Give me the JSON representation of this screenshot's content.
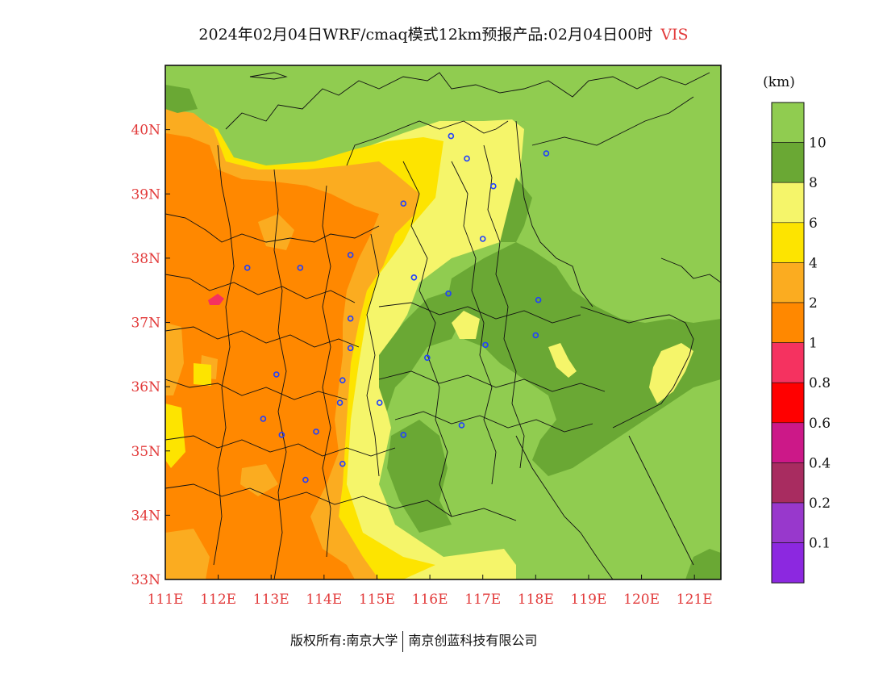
{
  "title": {
    "text": "2024年02月04日WRF/cmaq模式12km预报产品:02月04日00时",
    "variable": "VIS"
  },
  "map": {
    "lon_range": [
      111,
      121.5
    ],
    "lat_range": [
      33,
      41
    ],
    "x_ticks": [
      "111E",
      "112E",
      "113E",
      "114E",
      "115E",
      "116E",
      "117E",
      "118E",
      "119E",
      "120E",
      "121E"
    ],
    "y_ticks": [
      "33N",
      "34N",
      "35N",
      "36N",
      "37N",
      "38N",
      "39N",
      "40N"
    ],
    "city_markers": [
      [
        116.4,
        39.9
      ],
      [
        116.7,
        39.55
      ],
      [
        117.2,
        39.12
      ],
      [
        118.2,
        39.63
      ],
      [
        115.5,
        38.85
      ],
      [
        117.0,
        38.3
      ],
      [
        112.55,
        37.85
      ],
      [
        113.55,
        37.85
      ],
      [
        114.5,
        38.05
      ],
      [
        115.7,
        37.7
      ],
      [
        116.35,
        37.45
      ],
      [
        118.05,
        37.35
      ],
      [
        114.5,
        37.06
      ],
      [
        114.5,
        36.6
      ],
      [
        118.0,
        36.8
      ],
      [
        117.05,
        36.65
      ],
      [
        115.95,
        36.45
      ],
      [
        113.1,
        36.19
      ],
      [
        114.35,
        36.1
      ],
      [
        114.3,
        35.75
      ],
      [
        115.05,
        35.75
      ],
      [
        112.85,
        35.5
      ],
      [
        113.2,
        35.25
      ],
      [
        113.85,
        35.3
      ],
      [
        115.5,
        35.25
      ],
      [
        116.6,
        35.4
      ],
      [
        114.35,
        34.8
      ],
      [
        113.65,
        34.55
      ]
    ]
  },
  "legend": {
    "unit": "(km)",
    "labels": [
      "10",
      "8",
      "6",
      "4",
      "2",
      "1",
      "0.8",
      "0.6",
      "0.4",
      "0.2",
      "0.1"
    ],
    "colors": [
      "#90cc50",
      "#6aa834",
      "#f5f56a",
      "#fde400",
      "#fbac20",
      "#ff8800",
      "#f53260",
      "#ff0000",
      "#cc1888",
      "#a82c60",
      "#9838cc",
      "#8c28e0"
    ]
  },
  "footer": {
    "left": "版权所有:南京大学",
    "right": "南京创蓝科技有限公司"
  }
}
